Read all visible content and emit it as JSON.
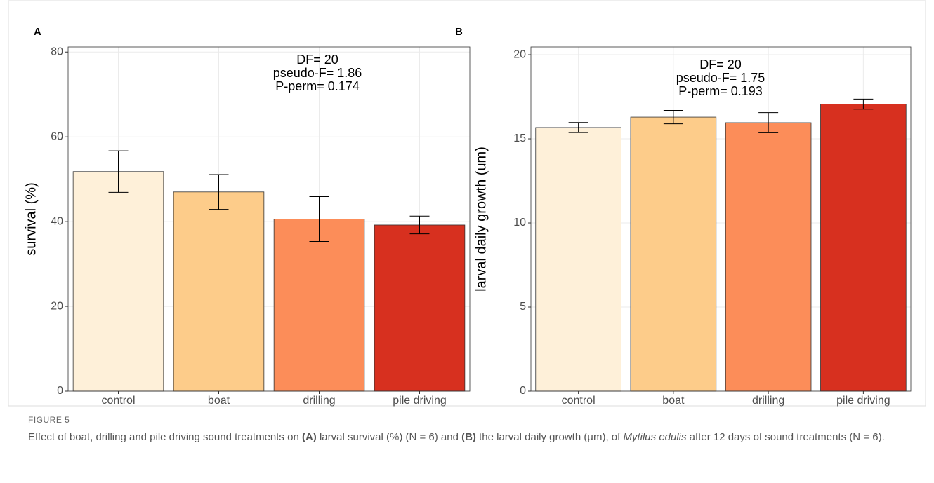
{
  "chart_data": [
    {
      "type": "bar",
      "panel": "A",
      "ylabel": "survival (%)",
      "categories": [
        "control",
        "boat",
        "drilling",
        "pile driving"
      ],
      "values": [
        51.8,
        47.0,
        40.6,
        39.2
      ],
      "errors": [
        4.9,
        4.1,
        5.3,
        2.1
      ],
      "colors": [
        "#fef0d9",
        "#fdcc8a",
        "#fc8d59",
        "#d7301f"
      ],
      "ylim": [
        0,
        81.2
      ],
      "yticks": [
        0,
        20,
        40,
        60,
        80
      ],
      "grid": true,
      "annotation": [
        "DF= 20",
        "pseudo-F= 1.86",
        "P-perm= 0.174"
      ]
    },
    {
      "type": "bar",
      "panel": "B",
      "ylabel": "larval daily growth (um)",
      "categories": [
        "control",
        "boat",
        "drilling",
        "pile driving"
      ],
      "values": [
        15.67,
        16.29,
        15.96,
        17.06
      ],
      "errors": [
        0.3,
        0.4,
        0.6,
        0.3
      ],
      "colors": [
        "#fef0d9",
        "#fdcc8a",
        "#fc8d59",
        "#d7301f"
      ],
      "ylim": [
        0,
        20.46
      ],
      "yticks": [
        0,
        5,
        10,
        15,
        20
      ],
      "grid": true,
      "annotation": [
        "DF= 20",
        "pseudo-F= 1.75",
        "P-perm= 0.193"
      ]
    }
  ],
  "caption": {
    "label": "FIGURE 5",
    "parts": [
      "Effect of boat, drilling and pile driving sound treatments on ",
      "(A)",
      " larval survival (%) (N = 6) and ",
      "(B)",
      " the larval daily growth (µm), of ",
      "Mytilus edulis",
      " after 12 days of sound treatments (N = 6)."
    ]
  }
}
